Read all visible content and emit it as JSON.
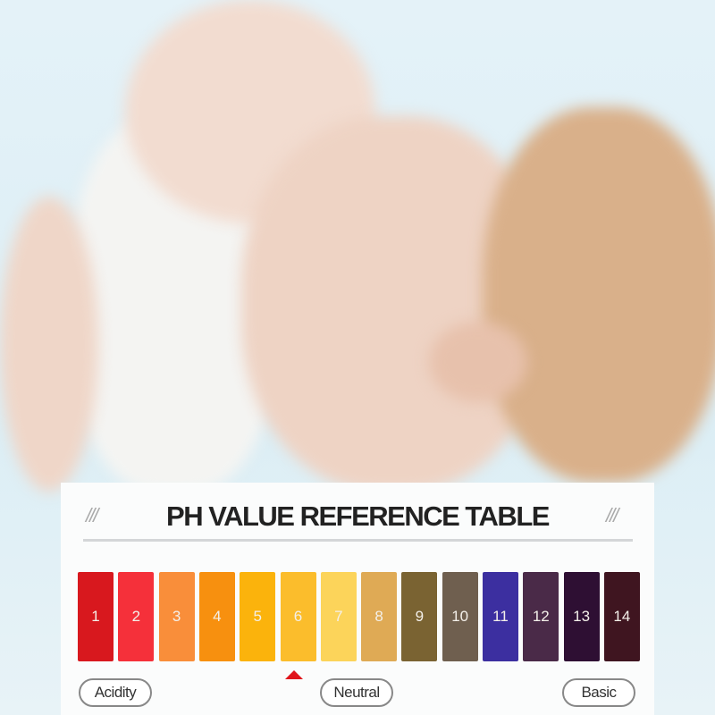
{
  "title": "PH VALUE REFERENCE TABLE",
  "decoration_left": "///",
  "decoration_right": "///",
  "scale": [
    {
      "label": "1",
      "color": "#d8181e"
    },
    {
      "label": "2",
      "color": "#f5303a"
    },
    {
      "label": "3",
      "color": "#f98e3a"
    },
    {
      "label": "4",
      "color": "#f7900f"
    },
    {
      "label": "5",
      "color": "#fbb30c"
    },
    {
      "label": "6",
      "color": "#fbbd2c"
    },
    {
      "label": "7",
      "color": "#fcd45a"
    },
    {
      "label": "8",
      "color": "#dfaa55"
    },
    {
      "label": "9",
      "color": "#7a6332"
    },
    {
      "label": "10",
      "color": "#6f5f4f"
    },
    {
      "label": "11",
      "color": "#3c2fa0"
    },
    {
      "label": "12",
      "color": "#4a2a48"
    },
    {
      "label": "13",
      "color": "#2e0f33"
    },
    {
      "label": "14",
      "color": "#3f1520"
    }
  ],
  "marker_value": "6",
  "labels": {
    "acidity": "Acidity",
    "neutral": "Neutral",
    "basic": "Basic"
  }
}
